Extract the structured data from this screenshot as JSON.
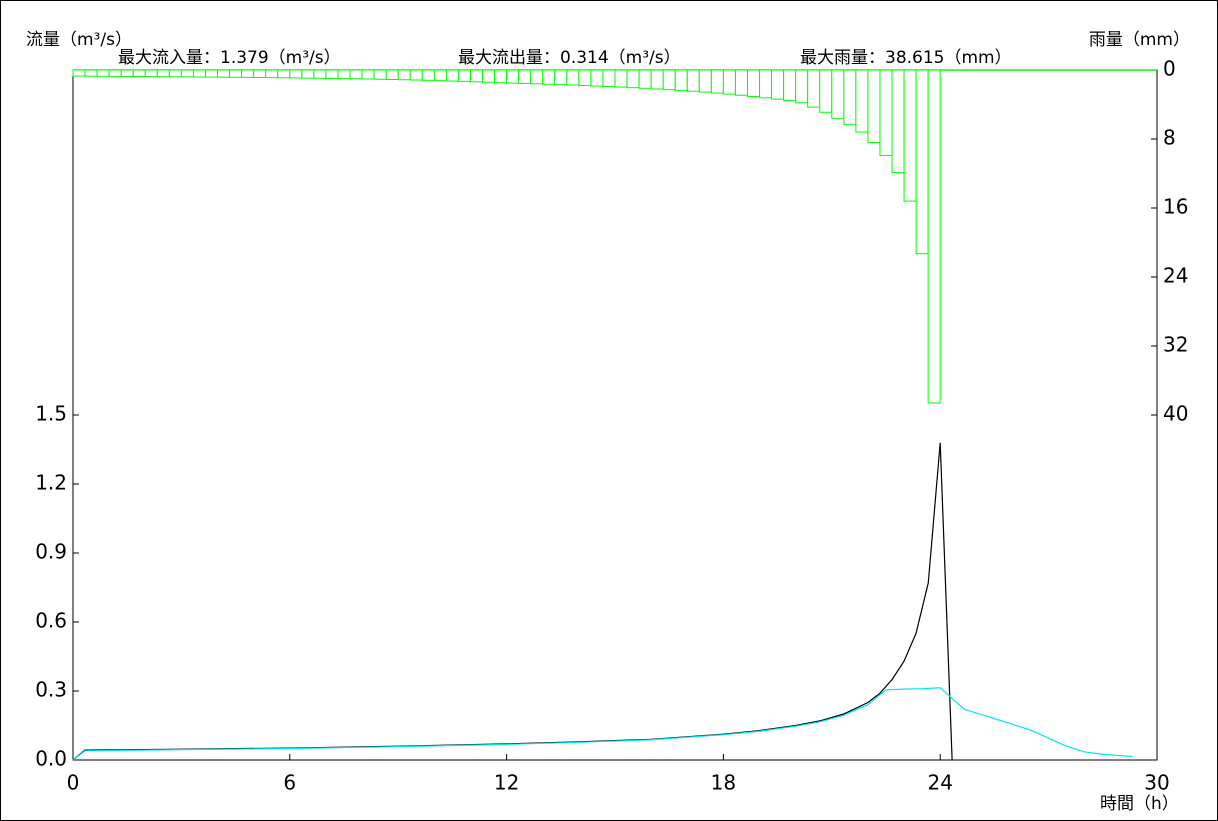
{
  "chart_data": {
    "type": "line",
    "ylabel": "流量（m³/s）",
    "y2label": "雨量（mm）",
    "xlabel": "時間（h）",
    "annotations": [
      "最大流入量：1.379（m³/s）",
      "最大流出量：0.314（m³/s）",
      "最大雨量：38.615（mm）"
    ],
    "xlim": [
      0,
      30
    ],
    "xticks": [
      0,
      6,
      12,
      18,
      24,
      30
    ],
    "ylim": [
      0,
      3
    ],
    "yticks": [
      {
        "value": 0,
        "label": "0.0"
      },
      0.3,
      0.6,
      0.9,
      1.2,
      1.5
    ],
    "y2lim": [
      80,
      0
    ],
    "y2ticks": [
      0,
      8,
      16,
      24,
      32,
      40
    ],
    "series": [
      {
        "type": "bar",
        "axis": "y2",
        "color": "#00ff00",
        "bins": [
          0,
          0.3333,
          0.6667,
          1,
          1.3333,
          1.6667,
          2,
          2.3333,
          2.6667,
          3,
          3.3333,
          3.6667,
          4,
          4.3333,
          4.6667,
          5,
          5.3333,
          5.6667,
          6,
          6.3333,
          6.6667,
          7,
          7.3333,
          7.6667,
          8,
          8.3333,
          8.6667,
          9,
          9.3333,
          9.6667,
          10,
          10.3333,
          10.6667,
          11,
          11.3333,
          11.6667,
          12,
          12.3333,
          12.6667,
          13,
          13.3333,
          13.6667,
          14,
          14.3333,
          14.6667,
          15,
          15.3333,
          15.6667,
          16,
          16.3333,
          16.6667,
          17,
          17.3333,
          17.6667,
          18,
          18.3333,
          18.6667,
          19,
          19.3333,
          19.6667,
          20,
          20.3333,
          20.6667,
          21,
          21.3333,
          21.6667,
          22,
          22.3333,
          22.6667,
          23,
          23.3333,
          23.6667,
          24
        ],
        "values": [
          0.7,
          0.72,
          0.73,
          0.74,
          0.75,
          0.76,
          0.77,
          0.78,
          0.79,
          0.8,
          0.81,
          0.82,
          0.83,
          0.84,
          0.86,
          0.87,
          0.88,
          0.9,
          0.92,
          0.94,
          0.96,
          0.98,
          1.0,
          1.02,
          1.04,
          1.07,
          1.1,
          1.13,
          1.16,
          1.2,
          1.24,
          1.28,
          1.32,
          1.37,
          1.42,
          1.48,
          1.52,
          1.56,
          1.6,
          1.65,
          1.7,
          1.75,
          1.8,
          1.86,
          1.92,
          1.98,
          2.05,
          2.12,
          2.2,
          2.28,
          2.37,
          2.46,
          2.56,
          2.67,
          2.8,
          2.93,
          3.07,
          3.22,
          3.38,
          3.55,
          3.8,
          4.3,
          4.9,
          5.6,
          6.3,
          7.2,
          8.4,
          9.9,
          11.9,
          15.2,
          21.3,
          38.615
        ]
      },
      {
        "type": "line",
        "color": "#000000",
        "x": [
          0,
          0.33,
          3,
          6,
          9,
          12,
          14,
          16,
          18,
          19,
          20,
          20.67,
          21.33,
          22,
          22.33,
          22.67,
          23,
          23.33,
          23.67,
          24,
          24.33
        ],
        "values": [
          0,
          0.043,
          0.047,
          0.052,
          0.06,
          0.07,
          0.079,
          0.09,
          0.112,
          0.128,
          0.15,
          0.17,
          0.2,
          0.25,
          0.29,
          0.35,
          0.43,
          0.55,
          0.77,
          1.379,
          0
        ]
      },
      {
        "type": "line",
        "color": "#00e5ee",
        "x": [
          0,
          0.33,
          3,
          6,
          9,
          12,
          14,
          16,
          18,
          19,
          20,
          20.67,
          21.33,
          22,
          22.5,
          23,
          23.5,
          24,
          24.67,
          25.5,
          26.5,
          27.5,
          28,
          28.5,
          29.33
        ],
        "values": [
          0,
          0.04,
          0.045,
          0.05,
          0.058,
          0.068,
          0.077,
          0.088,
          0.11,
          0.125,
          0.147,
          0.166,
          0.195,
          0.24,
          0.305,
          0.308,
          0.31,
          0.314,
          0.22,
          0.18,
          0.13,
          0.06,
          0.035,
          0.025,
          0.015
        ]
      }
    ]
  }
}
